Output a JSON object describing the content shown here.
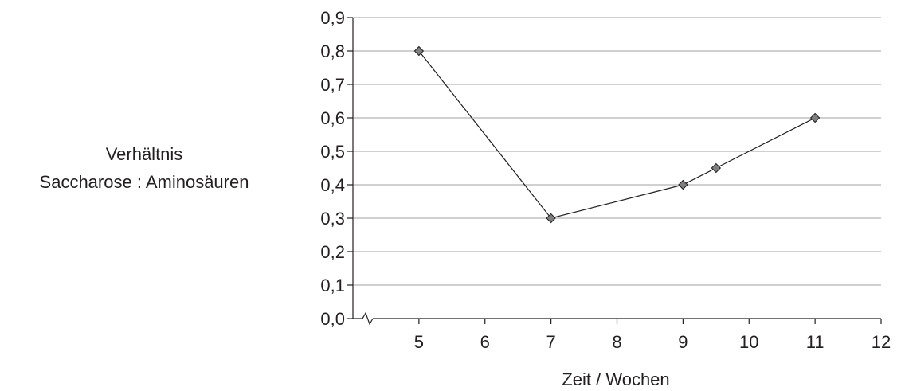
{
  "chart_data": {
    "type": "line",
    "title": "",
    "ylabel_lines": [
      "Verhältnis",
      "Saccharose : Aminosäuren"
    ],
    "xlabel": "Zeit / Wochen",
    "x_ticks": [
      "5",
      "6",
      "7",
      "8",
      "9",
      "10",
      "11",
      "12"
    ],
    "y_ticks": [
      "0,0",
      "0,1",
      "0,2",
      "0,3",
      "0,4",
      "0,5",
      "0,6",
      "0,7",
      "0,8",
      "0,9"
    ],
    "xlim": [
      4,
      12
    ],
    "ylim": [
      0,
      0.9
    ],
    "x_axis_break": true,
    "grid": "horizontal",
    "series": [
      {
        "x": [
          5,
          7,
          9,
          9.5,
          11
        ],
        "y": [
          0.8,
          0.3,
          0.4,
          0.45,
          0.6
        ]
      }
    ],
    "colors": {
      "line": "#231f20",
      "marker": "#7f7f7f",
      "grid": "#b5b5b5",
      "axis": "#231f20"
    }
  }
}
